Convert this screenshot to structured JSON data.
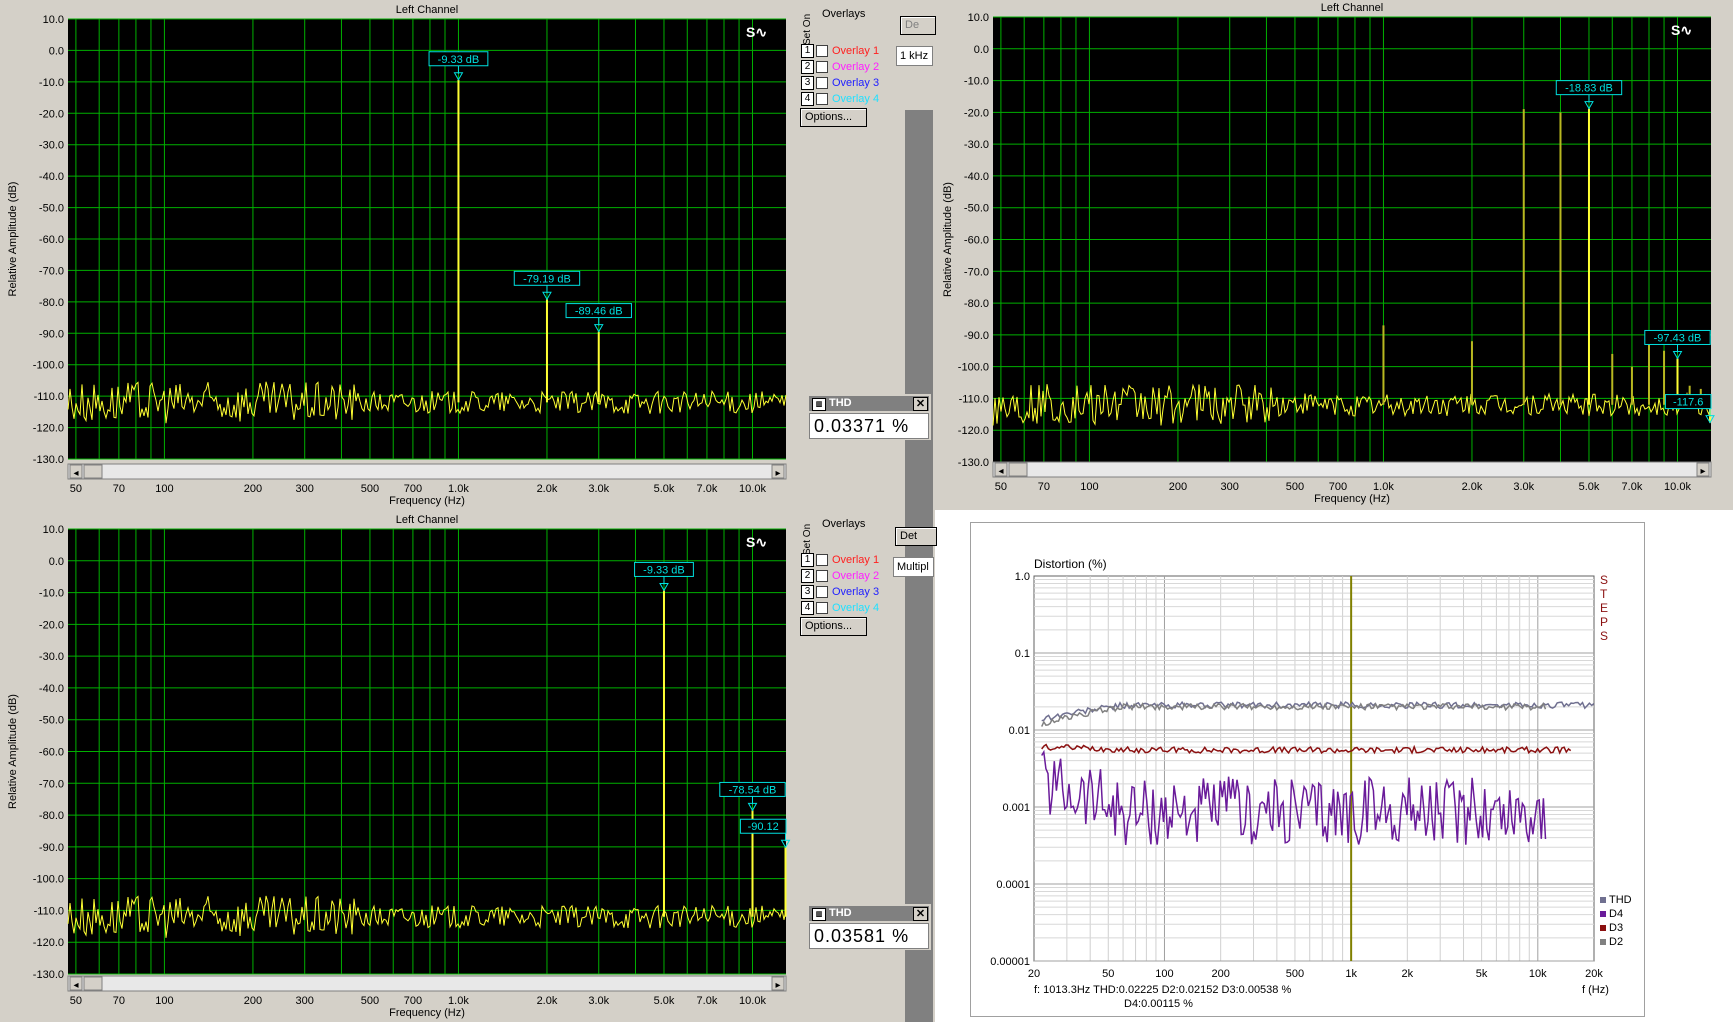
{
  "panels": [
    {
      "title": "Left Channel",
      "ylabel": "Relative Amplitude (dB)",
      "xlabel": "Frequency (Hz)",
      "thd_label": "THD",
      "thd_value": "0.03371  %",
      "control_label": "1 kHz",
      "top_button": "De",
      "markers": [
        "-9.33 dB",
        "-79.19 dB",
        "-89.46 dB"
      ]
    },
    {
      "title": "Left Channel",
      "ylabel": "Relative Amplitude (dB)",
      "xlabel": "Frequency (Hz)",
      "markers": [
        "-18.83 dB",
        "-97.43 dB",
        "-117.6"
      ]
    },
    {
      "title": "Left Channel",
      "ylabel": "Relative Amplitude (dB)",
      "xlabel": "Frequency (Hz)",
      "thd_label": "THD",
      "thd_value": "0.03581  %",
      "control_label": "Multipl",
      "top_button": "Det",
      "markers": [
        "-9.33 dB",
        "-78.54 dB",
        "-90.12"
      ]
    }
  ],
  "overlays": {
    "title": "Overlays",
    "set_on": "Set On",
    "items": [
      {
        "num": "1",
        "label": "Overlay 1",
        "color": "#ff2020"
      },
      {
        "num": "2",
        "label": "Overlay 2",
        "color": "#ff20ff"
      },
      {
        "num": "3",
        "label": "Overlay 3",
        "color": "#2020ff"
      },
      {
        "num": "4",
        "label": "Overlay 4",
        "color": "#20e0ff"
      }
    ],
    "options_label": "Options..."
  },
  "colors": {
    "trace": "#ffff33",
    "trace_dim": "#b8b820",
    "grid": "#00b000",
    "plot_bg": "#000000",
    "marker": "#00e0e0",
    "marker_bg": "#40e0e0"
  },
  "chart_data": [
    {
      "type": "line",
      "title": "Left Channel",
      "xlabel": "Frequency (Hz)",
      "ylabel": "Relative Amplitude (dB)",
      "xscale": "log",
      "xlim": [
        47,
        13000
      ],
      "ylim": [
        -130,
        10
      ],
      "yticks": [
        "10.0",
        "0.0",
        "-10.0",
        "-20.0",
        "-30.0",
        "-40.0",
        "-50.0",
        "-60.0",
        "-70.0",
        "-80.0",
        "-90.0",
        "-100.0",
        "-110.0",
        "-120.0",
        "-130.0"
      ],
      "xtick_values": [
        50,
        70,
        100,
        200,
        300,
        500,
        700,
        1000,
        2000,
        3000,
        5000,
        7000,
        10000
      ],
      "xtick_labels": [
        "50",
        "70",
        "100",
        "200",
        "300",
        "500",
        "700",
        "1.0k",
        "2.0k",
        "3.0k",
        "5.0k",
        "7.0k",
        "10.0k"
      ],
      "noise_floor": -112,
      "peaks": [
        {
          "f": 1000,
          "db": -9.33,
          "label": "-9.33 dB"
        },
        {
          "f": 2000,
          "db": -79.19,
          "label": "-79.19 dB"
        },
        {
          "f": 3000,
          "db": -89.46,
          "label": "-89.46 dB"
        }
      ]
    },
    {
      "type": "line",
      "title": "Left Channel",
      "xlabel": "Frequency (Hz)",
      "ylabel": "Relative Amplitude (dB)",
      "xscale": "log",
      "xlim": [
        47,
        13000
      ],
      "ylim": [
        -130,
        10
      ],
      "yticks": [
        "10.0",
        "0.0",
        "-10.0",
        "-20.0",
        "-30.0",
        "-40.0",
        "-50.0",
        "-60.0",
        "-70.0",
        "-80.0",
        "-90.0",
        "-100.0",
        "-110.0",
        "-120.0",
        "-130.0"
      ],
      "xtick_values": [
        50,
        70,
        100,
        200,
        300,
        500,
        700,
        1000,
        2000,
        3000,
        5000,
        7000,
        10000
      ],
      "xtick_labels": [
        "50",
        "70",
        "100",
        "200",
        "300",
        "500",
        "700",
        "1.0k",
        "2.0k",
        "3.0k",
        "5.0k",
        "7.0k",
        "10.0k"
      ],
      "noise_floor": -112,
      "peaks": [
        {
          "f": 1000,
          "db": -87
        },
        {
          "f": 2000,
          "db": -92
        },
        {
          "f": 3000,
          "db": -19
        },
        {
          "f": 4000,
          "db": -20
        },
        {
          "f": 5000,
          "db": -18.83,
          "label": "-18.83 dB"
        },
        {
          "f": 6000,
          "db": -96
        },
        {
          "f": 7000,
          "db": -100
        },
        {
          "f": 8000,
          "db": -93
        },
        {
          "f": 9000,
          "db": -95
        },
        {
          "f": 10000,
          "db": -97.43,
          "label": "-97.43 dB"
        },
        {
          "f": 11000,
          "db": -106
        },
        {
          "f": 12000,
          "db": -107
        },
        {
          "f": 12900,
          "db": -117.6,
          "label": "-117.6"
        }
      ]
    },
    {
      "type": "line",
      "title": "Left Channel",
      "xlabel": "Frequency (Hz)",
      "ylabel": "Relative Amplitude (dB)",
      "xscale": "log",
      "xlim": [
        47,
        13000
      ],
      "ylim": [
        -130,
        10
      ],
      "yticks": [
        "10.0",
        "0.0",
        "-10.0",
        "-20.0",
        "-30.0",
        "-40.0",
        "-50.0",
        "-60.0",
        "-70.0",
        "-80.0",
        "-90.0",
        "-100.0",
        "-110.0",
        "-120.0",
        "-130.0"
      ],
      "xtick_values": [
        50,
        70,
        100,
        200,
        300,
        500,
        700,
        1000,
        2000,
        3000,
        5000,
        7000,
        10000
      ],
      "xtick_labels": [
        "50",
        "70",
        "100",
        "200",
        "300",
        "500",
        "700",
        "1.0k",
        "2.0k",
        "3.0k",
        "5.0k",
        "7.0k",
        "10.0k"
      ],
      "noise_floor": -112,
      "peaks": [
        {
          "f": 5000,
          "db": -9.33,
          "label": "-9.33 dB"
        },
        {
          "f": 10000,
          "db": -78.54,
          "label": "-78.54 dB"
        },
        {
          "f": 12950,
          "db": -90.12,
          "label": "-90.12"
        }
      ]
    },
    {
      "type": "line",
      "title": "Distortion (%)",
      "xlabel": "f (Hz)",
      "xscale": "log",
      "yscale": "log",
      "xlim": [
        20,
        20000
      ],
      "ylim": [
        1e-05,
        1.0
      ],
      "ytick_labels": [
        "1.0",
        "0.1",
        "0.01",
        "0.001",
        "0.0001",
        "0.00001"
      ],
      "xtick_values": [
        20,
        50,
        100,
        200,
        500,
        1000,
        2000,
        5000,
        10000,
        20000
      ],
      "xtick_labels": [
        "20",
        "50",
        "100",
        "200",
        "500",
        "1k",
        "2k",
        "5k",
        "10k",
        "20k"
      ],
      "marker_frequency": 1000,
      "side_label": "STEPS",
      "footer_line1": "f: 1013.3Hz      THD:0.02225   D2:0.02152   D3:0.00538 %",
      "footer_line2": "D4:0.00115   %",
      "legend": [
        {
          "name": "THD",
          "color": "#707090"
        },
        {
          "name": "D4",
          "color": "#6a1b9a"
        },
        {
          "name": "D3",
          "color": "#8b1010"
        },
        {
          "name": "D2",
          "color": "#808080"
        }
      ],
      "series": [
        {
          "name": "THD",
          "color": "#707090",
          "level": 0.021,
          "start": 0.014
        },
        {
          "name": "D2",
          "color": "#808080",
          "level": 0.02,
          "start": 0.012
        },
        {
          "name": "D3",
          "color": "#8b1010",
          "level": 0.0055,
          "start": 0.006
        },
        {
          "name": "D4",
          "color": "#6a1b9a",
          "level": 0.0009,
          "start": 0.002
        }
      ]
    }
  ]
}
